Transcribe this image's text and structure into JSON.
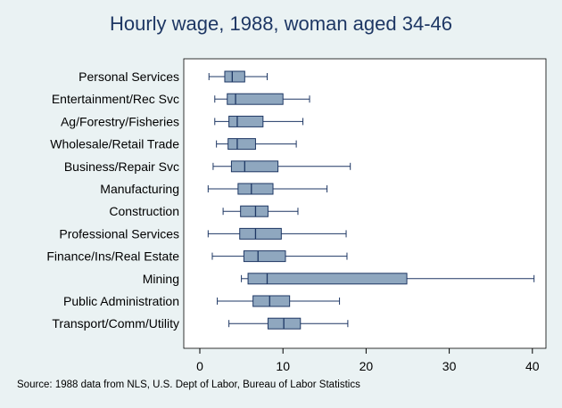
{
  "chart_data": {
    "type": "box",
    "orientation": "horizontal",
    "title": "Hourly wage, 1988, woman aged 34-46",
    "note": "Source:  1988 data from NLS, U.S. Dept of Labor, Bureau of Labor Statistics",
    "xlim": [
      0,
      42
    ],
    "xticks": [
      0,
      10,
      20,
      30,
      40
    ],
    "grid": false,
    "box_color": "#8fa7bf",
    "box_edge_color": "#1e3764",
    "categories": [
      "Personal Services",
      "Entertainment/Rec Svc",
      "Ag/Forestry/Fisheries",
      "Wholesale/Retail Trade",
      "Business/Repair Svc",
      "Manufacturing",
      "Construction",
      "Professional Services",
      "Finance/Ins/Real Estate",
      "Mining",
      "Public Administration",
      "Transport/Comm/Utility"
    ],
    "boxes": [
      {
        "whisker_low": 1.1,
        "q1": 3.0,
        "median": 3.9,
        "q3": 5.4,
        "whisker_high": 8.1
      },
      {
        "whisker_low": 1.8,
        "q1": 3.3,
        "median": 4.3,
        "q3": 10.0,
        "whisker_high": 13.2
      },
      {
        "whisker_low": 1.8,
        "q1": 3.5,
        "median": 4.5,
        "q3": 7.6,
        "whisker_high": 12.4
      },
      {
        "whisker_low": 2.0,
        "q1": 3.4,
        "median": 4.5,
        "q3": 6.7,
        "whisker_high": 11.6
      },
      {
        "whisker_low": 1.6,
        "q1": 3.8,
        "median": 5.4,
        "q3": 9.4,
        "whisker_high": 18.1
      },
      {
        "whisker_low": 1.0,
        "q1": 4.6,
        "median": 6.2,
        "q3": 8.8,
        "whisker_high": 15.3
      },
      {
        "whisker_low": 2.8,
        "q1": 4.9,
        "median": 6.7,
        "q3": 8.2,
        "whisker_high": 11.8
      },
      {
        "whisker_low": 1.0,
        "q1": 4.8,
        "median": 6.7,
        "q3": 9.8,
        "whisker_high": 17.6
      },
      {
        "whisker_low": 1.5,
        "q1": 5.3,
        "median": 7.0,
        "q3": 10.3,
        "whisker_high": 17.7
      },
      {
        "whisker_low": 5.0,
        "q1": 5.8,
        "median": 8.1,
        "q3": 24.9,
        "whisker_high": 40.2
      },
      {
        "whisker_low": 2.1,
        "q1": 6.4,
        "median": 8.4,
        "q3": 10.8,
        "whisker_high": 16.8
      },
      {
        "whisker_low": 3.5,
        "q1": 8.2,
        "median": 10.1,
        "q3": 12.1,
        "whisker_high": 17.8
      }
    ]
  }
}
